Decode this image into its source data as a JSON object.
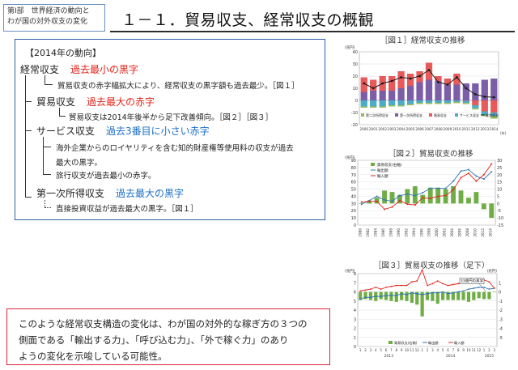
{
  "chapter": {
    "line1": "第Ⅰ部　世界経済の動向と",
    "line2": "わが国の対外収支の変化"
  },
  "title": "１－１．貿易収支、経常収支の概観",
  "summary": {
    "heading": "【2014年の動向】",
    "current_account": {
      "label": "経常収支",
      "highlight": "過去最小の黒字",
      "note": "貿易収支の赤字幅拡大により、経常収支の黒字額も過去最少。［図１］"
    },
    "trade": {
      "label": "貿易収支",
      "highlight": "過去最大の赤字",
      "note": "貿易収支は2014年後半から足下改善傾向。［図２］［図３］"
    },
    "services": {
      "label": "サービス収支",
      "highlight": "過去3番目に小さい赤字",
      "note1a": "海外企業からのロイヤリティを含む知的財産権等使用料の収支が過去",
      "note1b": "最大の黒字。",
      "note2": "旅行収支が過去最小の赤字。"
    },
    "primary_income": {
      "label": "第一次所得収支",
      "highlight": "過去最大の黒字",
      "note": "直接投資収益が過去最大の黒字。［図１］"
    }
  },
  "conclusion": {
    "line1": "このような経常収支構造の変化は、わが国の対外的な稼ぎ方の３つの",
    "line2": "側面である「輸出する力」、「呼び込む力」、「外で稼ぐ力」のあり",
    "line3": "ようの変化を示唆している可能性。"
  },
  "colors": {
    "primary_income": "#7b5ea7",
    "secondary_income": "#9bbb59",
    "services": "#4bacc6",
    "trade": "#e8595a",
    "current_line": "#1a1a1a",
    "exports": "#2e75b6",
    "imports": "#e0251b",
    "balance": "#70ad47"
  },
  "chart_data": [
    {
      "type": "bar",
      "title": "［図１］経常収支の推移",
      "unit": "(兆円)",
      "xunit": "(年)",
      "ylim": [
        -20,
        40
      ],
      "yticks": [
        "40",
        "30",
        "20",
        "10",
        "0",
        "-10",
        "-20"
      ],
      "categories": [
        "2000",
        "2001",
        "2002",
        "2003",
        "2004",
        "2005",
        "2006",
        "2007",
        "2008",
        "2009",
        "2010",
        "2011",
        "2012",
        "2013",
        "2014"
      ],
      "legend": [
        "第二次所得収支",
        "第一次所得収支",
        "貿易収支",
        "サービス収支",
        "経常収支"
      ],
      "series": [
        {
          "name": "第一次所得収支",
          "values": [
            7,
            8,
            8,
            8,
            10,
            12,
            15,
            17,
            16,
            13,
            13,
            14,
            14,
            17,
            18
          ]
        },
        {
          "name": "貿易収支",
          "values": [
            12,
            9,
            12,
            12,
            14,
            10,
            9,
            14,
            4,
            5,
            9,
            -0.3,
            -4,
            -9,
            -10
          ]
        },
        {
          "name": "サービス収支",
          "values": [
            -5,
            -5,
            -5,
            -4,
            -4,
            -3,
            -2,
            -2,
            -2,
            -2,
            -1.3,
            -1.8,
            -2.5,
            -3,
            -3
          ]
        },
        {
          "name": "第二次所得収支",
          "values": [
            -1,
            -1,
            -1,
            -1,
            -1,
            -1,
            -1,
            -1,
            -1,
            -1,
            -1,
            -1,
            -1,
            -1,
            -2
          ]
        },
        {
          "name": "経常収支",
          "values": [
            14,
            10,
            14,
            16,
            19,
            18,
            20,
            25,
            15,
            13,
            19,
            10,
            5,
            3,
            2.6
          ]
        }
      ]
    },
    {
      "type": "bar",
      "title": "［図２］貿易収支の推移",
      "unit": "(兆円)",
      "ylim": [
        0,
        90
      ],
      "yticks": [
        "90",
        "80",
        "70",
        "60",
        "50",
        "40",
        "30",
        "20",
        "10",
        "0"
      ],
      "y2ticks": [
        "30",
        "25",
        "20",
        "15",
        "10",
        "5",
        "0",
        "-5",
        "-10",
        "-15"
      ],
      "categories": [
        "1980",
        "1982",
        "1984",
        "1986",
        "1988",
        "1990",
        "1992",
        "1994",
        "1996",
        "1998",
        "2000",
        "2002",
        "2004",
        "2006",
        "2008",
        "2010",
        "2012",
        "2014"
      ],
      "legend": [
        "貿易収支(右軸)",
        "輸出額",
        "輸入額"
      ],
      "series": [
        {
          "name": "貿易収支(右軸)",
          "values": [
            0.3,
            2,
            4,
            9,
            8,
            6,
            10,
            12,
            6,
            11,
            11,
            10,
            12,
            9,
            4,
            8,
            -4,
            -10
          ]
        },
        {
          "name": "輸出額",
          "values": [
            29,
            34,
            40,
            35,
            33,
            41,
            43,
            41,
            45,
            51,
            51,
            51,
            61,
            75,
            77,
            68,
            64,
            74
          ]
        },
        {
          "name": "輸入額",
          "values": [
            32,
            33,
            33,
            22,
            25,
            34,
            29,
            28,
            38,
            37,
            40,
            41,
            49,
            66,
            72,
            61,
            70,
            85
          ]
        }
      ]
    },
    {
      "type": "bar",
      "title": "［図３］貿易収支の推移（足下）",
      "unit": "(兆円)",
      "ylim": [
        0,
        8
      ],
      "yticks": [
        "8",
        "7",
        "6",
        "5",
        "4",
        "3",
        "2",
        "1",
        "0"
      ],
      "y2ticks": [
        "1",
        "0",
        "-1",
        "-2",
        "-3",
        "-4",
        "-5"
      ],
      "annotation": "33億円の黒字",
      "year_labels": [
        "2013",
        "2014",
        "2015"
      ],
      "legend": [
        "貿易収支(右軸)",
        "輸出額",
        "輸入額"
      ],
      "series": [
        {
          "name": "貿易収支(右軸)",
          "values": [
            -0.9,
            -0.8,
            -0.9,
            -1.0,
            -0.8,
            -0.9,
            -1.0,
            -1.1,
            -0.9,
            -1.0,
            -1.2,
            -1.4,
            -2.7,
            -0.9,
            -1.0,
            -1.3,
            -0.9,
            -0.9,
            -0.9,
            -0.9,
            -0.9,
            -1.1,
            -0.9,
            -0.7,
            -0.8,
            -0.8,
            0.03
          ]
        },
        {
          "name": "輸出額",
          "values": [
            5.2,
            5.4,
            5.4,
            5.5,
            5.5,
            5.6,
            5.6,
            5.6,
            5.8,
            5.7,
            5.9,
            5.8,
            5.7,
            5.8,
            5.9,
            5.9,
            6.0,
            5.8,
            5.9,
            6.0,
            6.1,
            6.3,
            6.4,
            6.5,
            6.5,
            6.3,
            6.4
          ]
        },
        {
          "name": "輸入額",
          "values": [
            6.1,
            6.2,
            6.3,
            6.5,
            6.3,
            6.5,
            6.6,
            6.7,
            6.7,
            6.7,
            7.1,
            7.2,
            8.4,
            6.7,
            6.9,
            7.2,
            6.9,
            6.7,
            6.8,
            6.9,
            7.0,
            7.4,
            7.3,
            7.2,
            7.3,
            7.1,
            6.4
          ]
        }
      ]
    }
  ]
}
